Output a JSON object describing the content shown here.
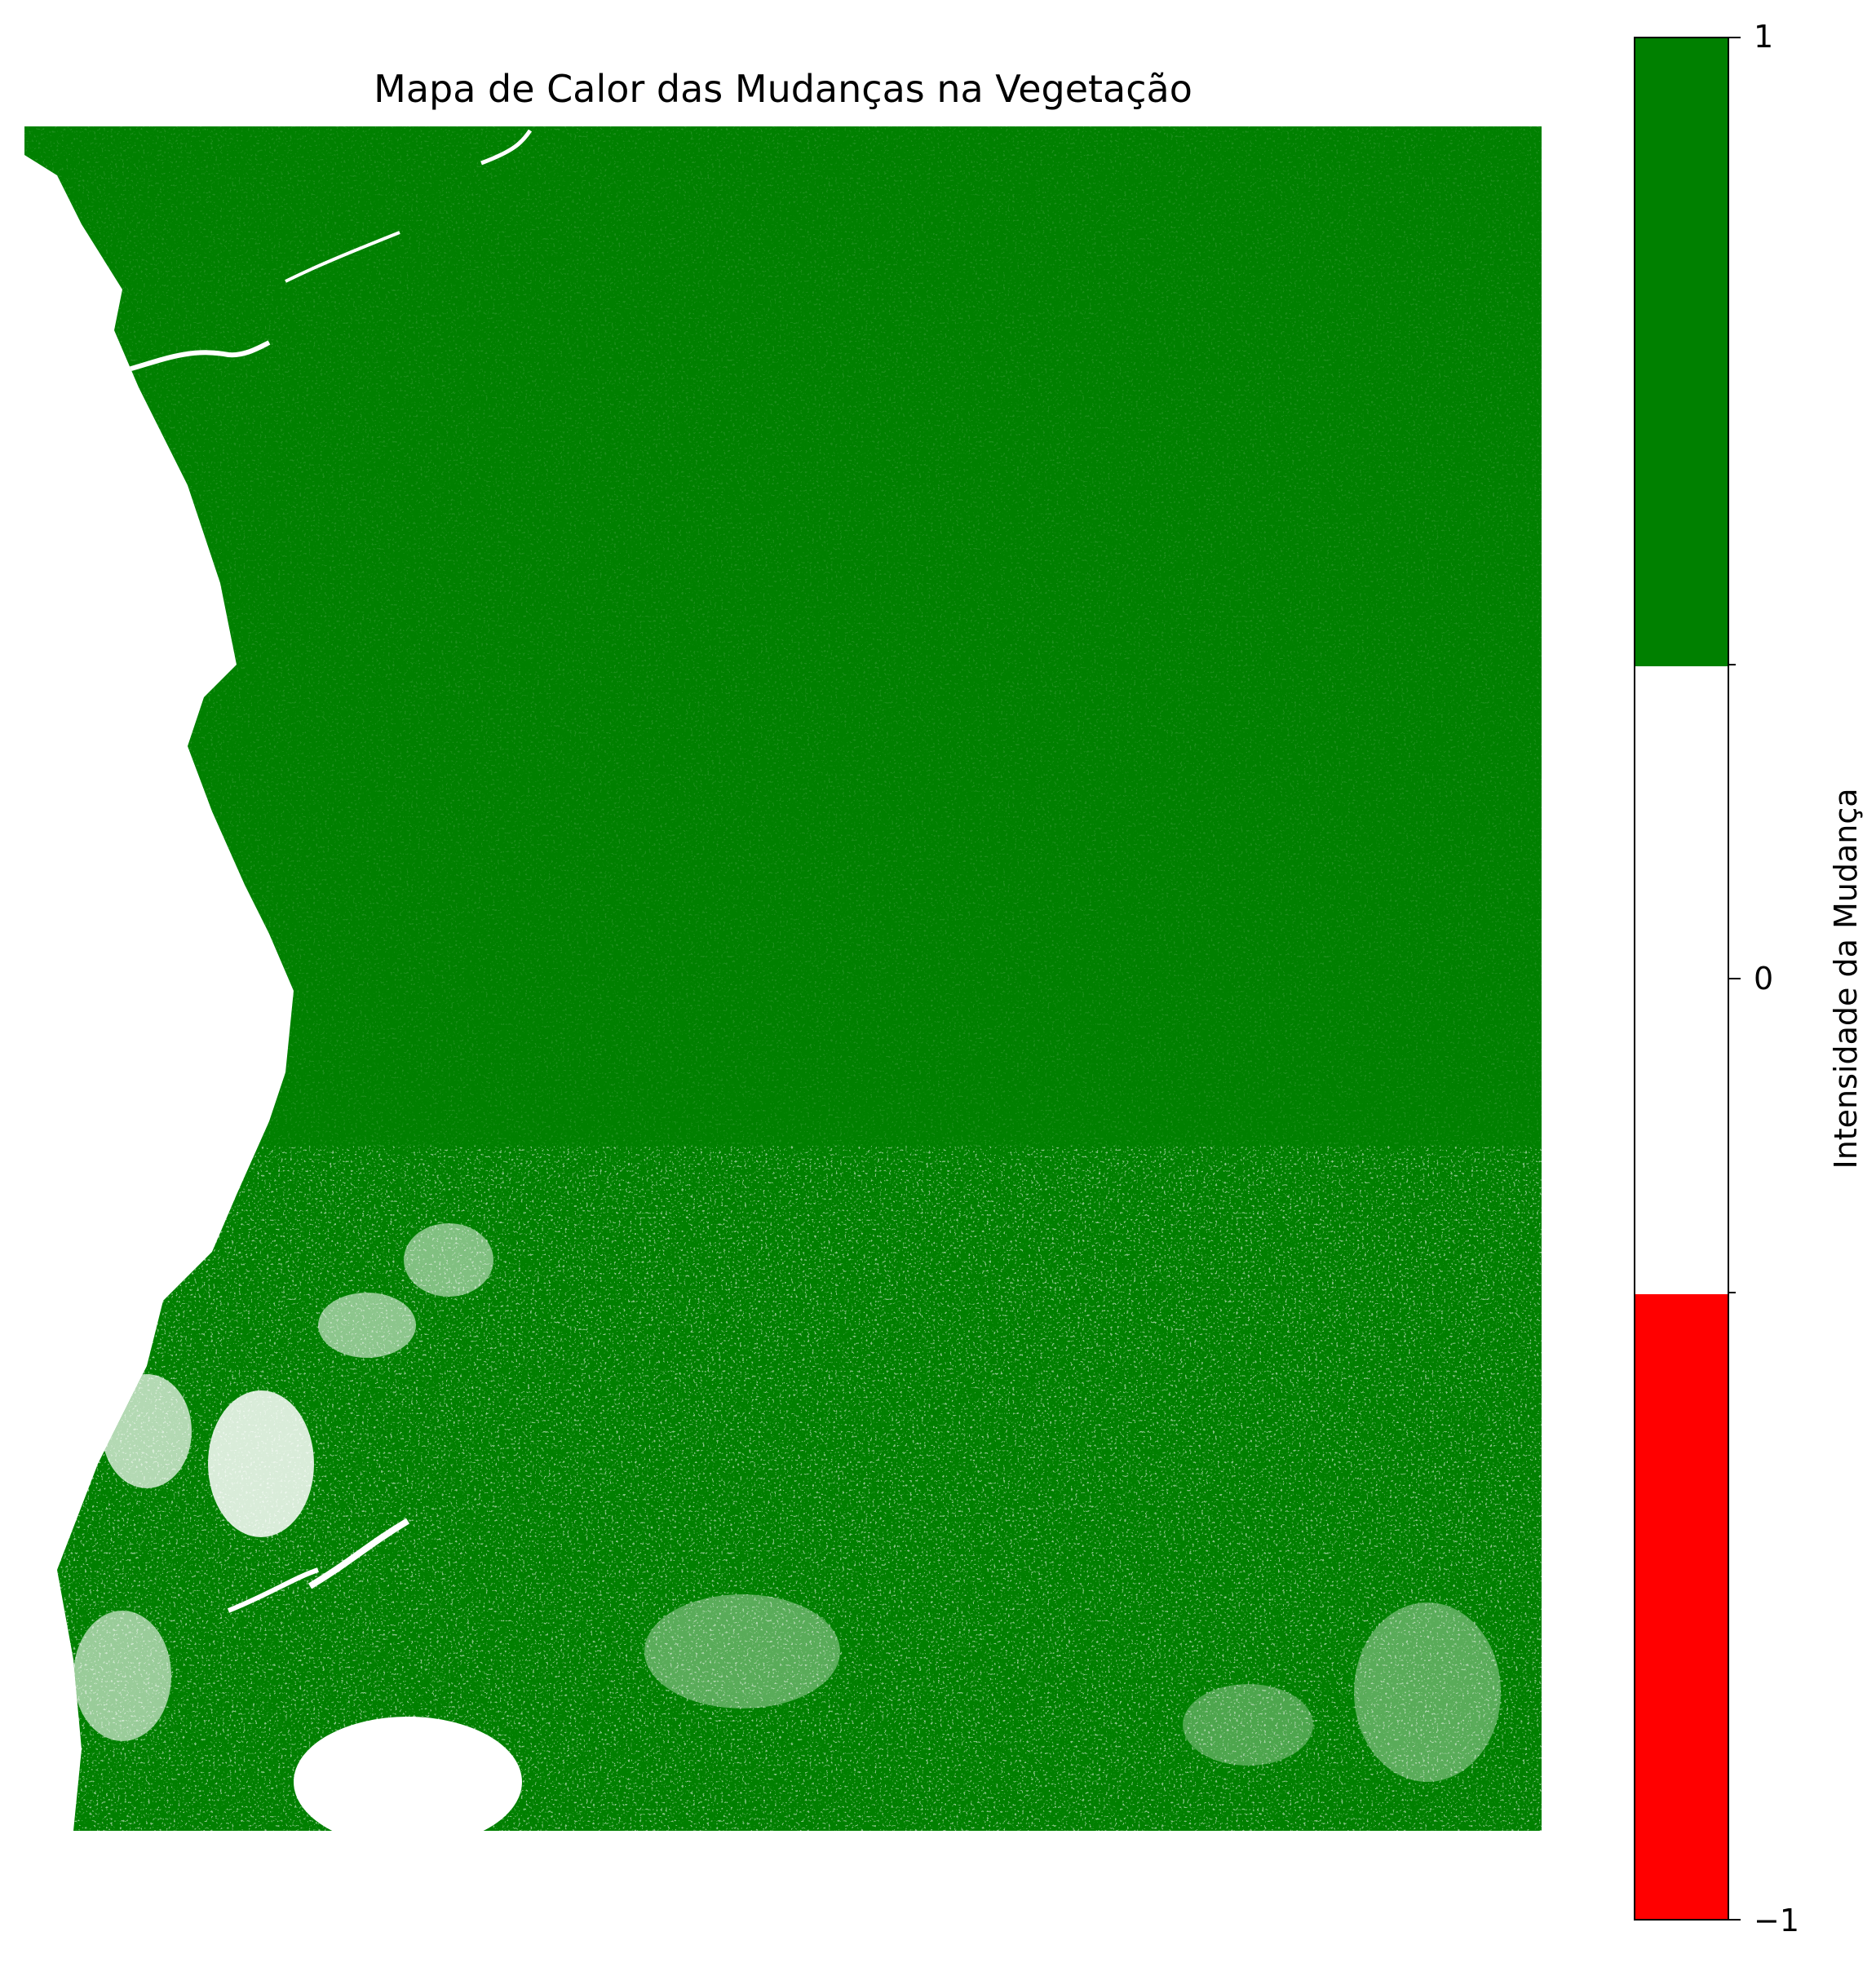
{
  "title": "Mapa de Calor das Mudanças na Vegetação",
  "colorbar": {
    "label": "Intensidade da Mudança",
    "range": [
      -1,
      1
    ],
    "tick_values": [
      -1,
      0,
      1
    ],
    "tick_labels": [
      "−1",
      "0",
      "1"
    ],
    "segments": [
      {
        "from": -1,
        "to": -0.333,
        "color": "#ff0000"
      },
      {
        "from": -0.333,
        "to": 0.333,
        "color": "#ffffff"
      },
      {
        "from": 0.333,
        "to": 1,
        "color": "#008000"
      }
    ]
  },
  "chart_data": {
    "type": "heatmap",
    "title": "Mapa de Calor das Mudanças na Vegetação",
    "colorbar_label": "Intensidade da Mudança",
    "vmin": -1,
    "vmax": 1,
    "dominant_value": 1,
    "dominant_color": "#008000",
    "background_color": "#ffffff"
  }
}
